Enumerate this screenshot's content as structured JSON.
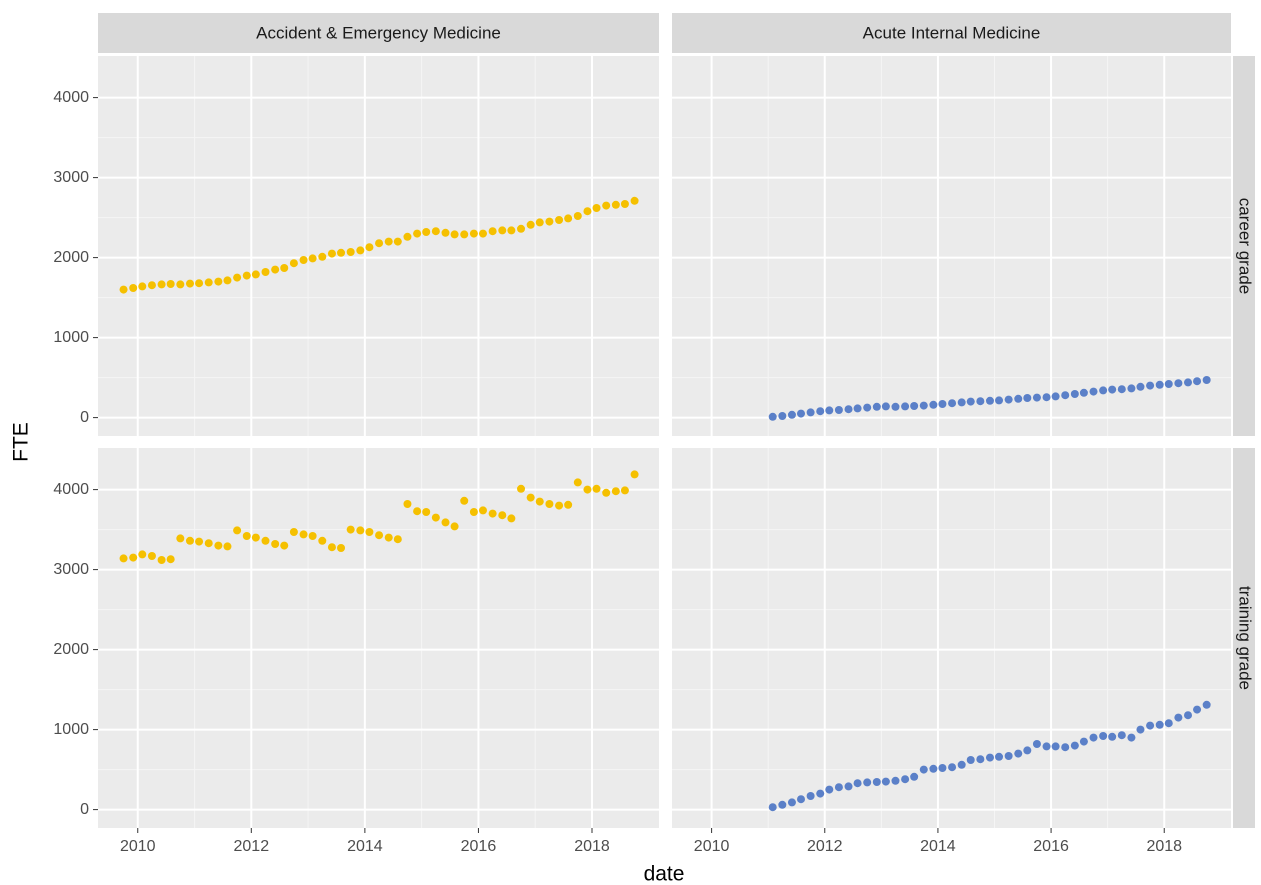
{
  "chart_data": {
    "type": "scatter",
    "x_label": "date",
    "y_label": "FTE",
    "xlim": [
      2009.3,
      2019.18
    ],
    "xticks": [
      2010,
      2012,
      2014,
      2016,
      2018
    ],
    "ylim": [
      -230,
      4520
    ],
    "yticks": [
      0,
      1000,
      2000,
      3000,
      4000
    ],
    "grid": true,
    "columns": [
      "Accident & Emergency Medicine",
      "Acute Internal Medicine"
    ],
    "rows": [
      "career grade",
      "training grade"
    ],
    "panels": [
      [
        {
          "color": "#f5c000",
          "x": [
            2009.75,
            2009.92,
            2010.08,
            2010.25,
            2010.42,
            2010.58,
            2010.75,
            2010.92,
            2011.08,
            2011.25,
            2011.42,
            2011.58,
            2011.75,
            2011.92,
            2012.08,
            2012.25,
            2012.42,
            2012.58,
            2012.75,
            2012.92,
            2013.08,
            2013.25,
            2013.42,
            2013.58,
            2013.75,
            2013.92,
            2014.08,
            2014.25,
            2014.42,
            2014.58,
            2014.75,
            2014.92,
            2015.08,
            2015.25,
            2015.42,
            2015.58,
            2015.75,
            2015.92,
            2016.08,
            2016.25,
            2016.42,
            2016.58,
            2016.75,
            2016.92,
            2017.08,
            2017.25,
            2017.42,
            2017.58,
            2017.75,
            2017.92,
            2018.08,
            2018.25,
            2018.42,
            2018.58,
            2018.75
          ],
          "values": [
            1600,
            1620,
            1640,
            1655,
            1665,
            1670,
            1665,
            1675,
            1680,
            1690,
            1700,
            1715,
            1750,
            1775,
            1790,
            1820,
            1850,
            1870,
            1930,
            1970,
            1990,
            2010,
            2050,
            2060,
            2070,
            2090,
            2130,
            2180,
            2200,
            2200,
            2260,
            2300,
            2320,
            2330,
            2310,
            2290,
            2290,
            2300,
            2300,
            2330,
            2340,
            2340,
            2360,
            2410,
            2440,
            2450,
            2470,
            2490,
            2520,
            2580,
            2620,
            2650,
            2660,
            2670,
            2710
          ]
        },
        {
          "color": "#5b80c8",
          "x": [
            2011.08,
            2011.25,
            2011.42,
            2011.58,
            2011.75,
            2011.92,
            2012.08,
            2012.25,
            2012.42,
            2012.58,
            2012.75,
            2012.92,
            2013.08,
            2013.25,
            2013.42,
            2013.58,
            2013.75,
            2013.92,
            2014.08,
            2014.25,
            2014.42,
            2014.58,
            2014.75,
            2014.92,
            2015.08,
            2015.25,
            2015.42,
            2015.58,
            2015.75,
            2015.92,
            2016.08,
            2016.25,
            2016.42,
            2016.58,
            2016.75,
            2016.92,
            2017.08,
            2017.25,
            2017.42,
            2017.58,
            2017.75,
            2017.92,
            2018.08,
            2018.25,
            2018.42,
            2018.58,
            2018.75
          ],
          "values": [
            10,
            20,
            35,
            50,
            65,
            80,
            90,
            95,
            105,
            115,
            125,
            135,
            140,
            135,
            140,
            145,
            150,
            160,
            170,
            180,
            190,
            200,
            205,
            210,
            215,
            225,
            235,
            245,
            250,
            255,
            265,
            280,
            295,
            310,
            325,
            340,
            350,
            355,
            365,
            385,
            400,
            410,
            420,
            430,
            440,
            455,
            470
          ]
        }
      ],
      [
        {
          "color": "#f5c000",
          "x": [
            2009.75,
            2009.92,
            2010.08,
            2010.25,
            2010.42,
            2010.58,
            2010.75,
            2010.92,
            2011.08,
            2011.25,
            2011.42,
            2011.58,
            2011.75,
            2011.92,
            2012.08,
            2012.25,
            2012.42,
            2012.58,
            2012.75,
            2012.92,
            2013.08,
            2013.25,
            2013.42,
            2013.58,
            2013.75,
            2013.92,
            2014.08,
            2014.25,
            2014.42,
            2014.58,
            2014.75,
            2014.92,
            2015.08,
            2015.25,
            2015.42,
            2015.58,
            2015.75,
            2015.92,
            2016.08,
            2016.25,
            2016.42,
            2016.58,
            2016.75,
            2016.92,
            2017.08,
            2017.25,
            2017.42,
            2017.58,
            2017.75,
            2017.92,
            2018.08,
            2018.25,
            2018.42,
            2018.58,
            2018.75
          ],
          "values": [
            3140,
            3150,
            3190,
            3170,
            3120,
            3130,
            3390,
            3360,
            3350,
            3330,
            3300,
            3290,
            3490,
            3420,
            3400,
            3360,
            3320,
            3300,
            3470,
            3440,
            3420,
            3360,
            3280,
            3270,
            3500,
            3490,
            3470,
            3430,
            3400,
            3380,
            3820,
            3730,
            3720,
            3650,
            3590,
            3540,
            3860,
            3720,
            3740,
            3700,
            3680,
            3640,
            4010,
            3900,
            3850,
            3820,
            3800,
            3810,
            4090,
            4000,
            4010,
            3960,
            3980,
            3990,
            4190
          ]
        },
        {
          "color": "#5b80c8",
          "x": [
            2011.08,
            2011.25,
            2011.42,
            2011.58,
            2011.75,
            2011.92,
            2012.08,
            2012.25,
            2012.42,
            2012.58,
            2012.75,
            2012.92,
            2013.08,
            2013.25,
            2013.42,
            2013.58,
            2013.75,
            2013.92,
            2014.08,
            2014.25,
            2014.42,
            2014.58,
            2014.75,
            2014.92,
            2015.08,
            2015.25,
            2015.42,
            2015.58,
            2015.75,
            2015.92,
            2016.08,
            2016.25,
            2016.42,
            2016.58,
            2016.75,
            2016.92,
            2017.08,
            2017.25,
            2017.42,
            2017.58,
            2017.75,
            2017.92,
            2018.08,
            2018.25,
            2018.42,
            2018.58,
            2018.75
          ],
          "values": [
            30,
            60,
            90,
            130,
            170,
            200,
            250,
            280,
            290,
            330,
            340,
            345,
            350,
            360,
            380,
            410,
            500,
            510,
            520,
            530,
            560,
            620,
            630,
            650,
            660,
            670,
            700,
            740,
            820,
            790,
            790,
            780,
            800,
            850,
            900,
            920,
            910,
            930,
            900,
            1000,
            1050,
            1060,
            1080,
            1150,
            1180,
            1250,
            1310
          ]
        }
      ]
    ]
  }
}
